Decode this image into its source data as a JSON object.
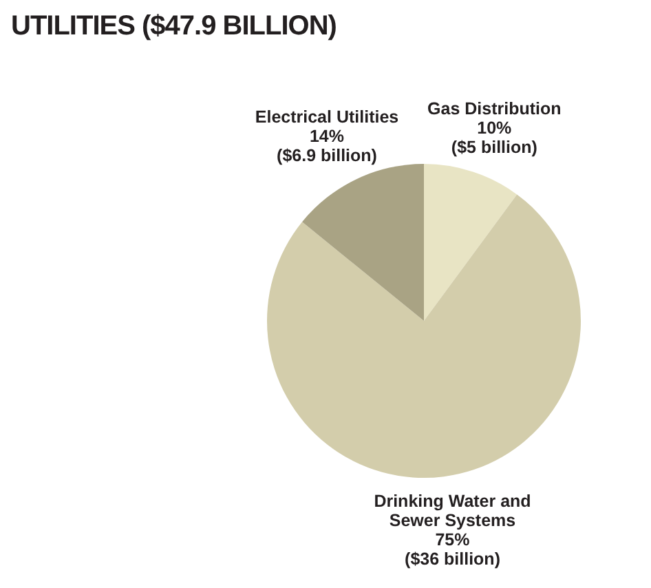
{
  "chart_data": {
    "type": "pie",
    "title": "UTILITIES ($47.9 BILLION)",
    "categories": [
      "Gas Distribution",
      "Drinking Water and Sewer Systems",
      "Electrical Utilities"
    ],
    "values": [
      10,
      75,
      14
    ],
    "colors": [
      "#e8e4c4",
      "#d3cdab",
      "#a9a384"
    ],
    "value_labels": [
      "10% ($5 billion)",
      "75% ($36 billion)",
      "14% ($6.9 billion)"
    ],
    "legend": false
  }
}
